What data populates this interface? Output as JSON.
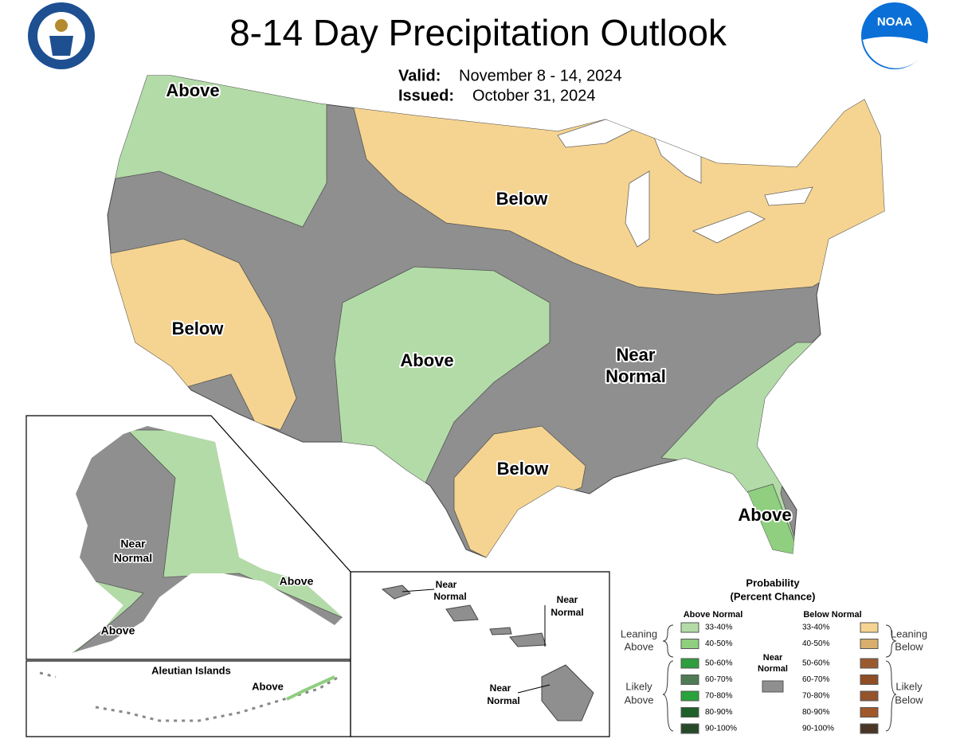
{
  "header": {
    "title": "8-14 Day Precipitation Outlook",
    "valid_label": "Valid:",
    "valid": "November 8 - 14, 2024",
    "issued_label": "Issued:",
    "issued": "October 31, 2024",
    "noaa_logo": "NOAA"
  },
  "regions": [
    {
      "text": [
        "Above"
      ]
    },
    {
      "text": [
        "Below"
      ]
    },
    {
      "text": [
        "Below"
      ]
    },
    {
      "text": [
        "Above"
      ]
    },
    {
      "text": [
        "Near",
        "Normal"
      ]
    },
    {
      "text": [
        "Below"
      ]
    },
    {
      "text": [
        "Above"
      ]
    }
  ],
  "alaska": {
    "labels": [
      {
        "text": [
          "Near",
          "Normal"
        ]
      },
      {
        "text": [
          "Above"
        ]
      },
      {
        "text": [
          "Above"
        ]
      }
    ]
  },
  "aleutians": {
    "title": "Aleutian Islands",
    "label": "Above"
  },
  "hawaii": {
    "labels": [
      {
        "text": [
          "Near",
          "Normal"
        ]
      },
      {
        "text": [
          "Near",
          "Normal"
        ]
      },
      {
        "text": [
          "Near",
          "Normal"
        ]
      }
    ]
  },
  "legend": {
    "title": [
      "Probability",
      "(Percent Chance)"
    ],
    "above_header": "Above Normal",
    "below_header": "Below Normal",
    "near_header": [
      "Near",
      "Normal"
    ],
    "near_color": "#8f8f8f",
    "leaning_above": [
      "Leaning",
      "Above"
    ],
    "likely_above": [
      "Likely",
      "Above"
    ],
    "leaning_below": [
      "Leaning",
      "Below"
    ],
    "likely_below": [
      "Likely",
      "Below"
    ],
    "above": [
      {
        "range": "33-40%",
        "color": "#b3dba8"
      },
      {
        "range": "40-50%",
        "color": "#8fcf7f"
      },
      {
        "range": "50-60%",
        "color": "#2e9e3e"
      },
      {
        "range": "60-70%",
        "color": "#4f7a56"
      },
      {
        "range": "70-80%",
        "color": "#2aa33b"
      },
      {
        "range": "80-90%",
        "color": "#1f5f2a"
      },
      {
        "range": "90-100%",
        "color": "#26492a"
      }
    ],
    "below": [
      {
        "range": "33-40%",
        "color": "#f5d491"
      },
      {
        "range": "40-50%",
        "color": "#d9ae6c"
      },
      {
        "range": "50-60%",
        "color": "#9b5a2e"
      },
      {
        "range": "60-70%",
        "color": "#8f4e26"
      },
      {
        "range": "70-80%",
        "color": "#94532b"
      },
      {
        "range": "80-90%",
        "color": "#a0582a"
      },
      {
        "range": "90-100%",
        "color": "#4a3626"
      }
    ]
  }
}
